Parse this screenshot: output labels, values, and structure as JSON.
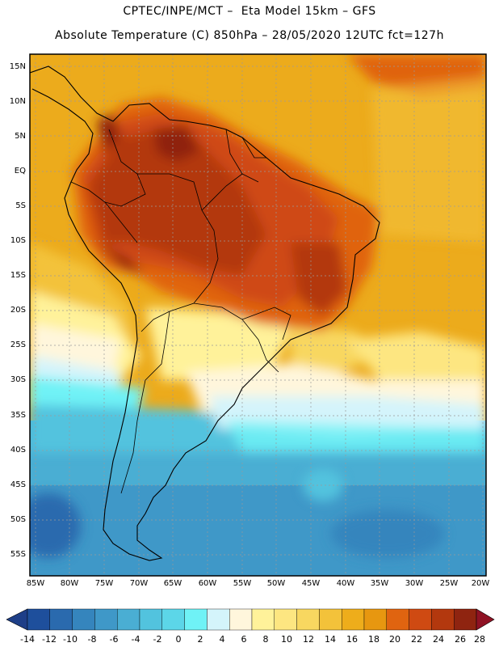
{
  "header": {
    "title_line1": "CPTEC/INPE/MCT –  Eta Model 15km – GFS",
    "title_line2": "Absolute Temperature (C) 850hPa – 28/05/2020 12UTC fct=127h"
  },
  "map": {
    "lat_labels": [
      "15N",
      "10N",
      "5N",
      "EQ",
      "5S",
      "10S",
      "15S",
      "20S",
      "25S",
      "30S",
      "35S",
      "40S",
      "45S",
      "50S",
      "55S"
    ],
    "lon_labels": [
      "85W",
      "80W",
      "75W",
      "70W",
      "65W",
      "60W",
      "55W",
      "50W",
      "45W",
      "40W",
      "35W",
      "30W",
      "25W",
      "20W"
    ]
  },
  "colorbar": {
    "labels": [
      "-14",
      "-12",
      "-10",
      "-8",
      "-6",
      "-4",
      "-2",
      "0",
      "2",
      "4",
      "6",
      "8",
      "10",
      "12",
      "14",
      "16",
      "18",
      "20",
      "22",
      "24",
      "26",
      "28"
    ],
    "colors": [
      "#1e4f9c",
      "#2a6aae",
      "#3585bd",
      "#3f98c8",
      "#4aaed3",
      "#52c3de",
      "#5cd6e8",
      "#6ff2f6",
      "#d4f4fb",
      "#fff6dc",
      "#fff29a",
      "#fde681",
      "#f8d760",
      "#f3c23a",
      "#eead1b",
      "#e79710",
      "#e06410",
      "#cf4a12",
      "#b3380e",
      "#8f2410"
    ]
  }
}
